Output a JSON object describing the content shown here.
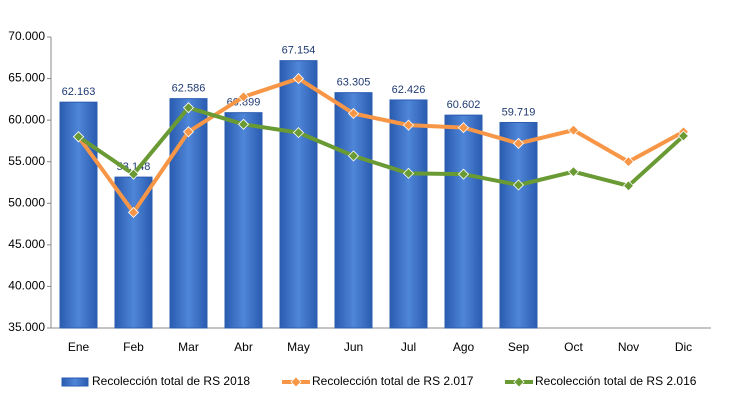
{
  "chart_data": {
    "type": "combo",
    "categories": [
      "Ene",
      "Feb",
      "Mar",
      "Abr",
      "May",
      "Jun",
      "Jul",
      "Ago",
      "Sep",
      "Oct",
      "Nov",
      "Dic"
    ],
    "series": [
      {
        "name": "Recolección total de RS 2018",
        "type": "bar",
        "color": "#3a6fc4",
        "values": [
          62163,
          53148,
          62586,
          60899,
          67154,
          63305,
          62426,
          60602,
          59719,
          null,
          null,
          null
        ],
        "value_labels": [
          "62.163",
          "53.148",
          "62.586",
          "60.899",
          "67.154",
          "63.305",
          "62.426",
          "60.602",
          "59.719",
          null,
          null,
          null
        ]
      },
      {
        "name": "Recolección total de RS 2.017",
        "type": "line",
        "color": "#f79646",
        "values": [
          58000,
          48900,
          58600,
          62800,
          65000,
          60800,
          59400,
          59100,
          57200,
          58800,
          55000,
          58600
        ]
      },
      {
        "name": "Recolección total de RS 2.016",
        "type": "line",
        "color": "#6a9a34",
        "values": [
          58000,
          53500,
          61500,
          59500,
          58500,
          55700,
          53600,
          53500,
          52200,
          53800,
          52100,
          58100
        ]
      }
    ],
    "ylim": [
      35000,
      70000
    ],
    "yticks": [
      {
        "value": 35000,
        "label": "35.000"
      },
      {
        "value": 40000,
        "label": "40.000"
      },
      {
        "value": 45000,
        "label": "45.000"
      },
      {
        "value": 50000,
        "label": "50.000"
      },
      {
        "value": 55000,
        "label": "55.000"
      },
      {
        "value": 60000,
        "label": "60.000"
      },
      {
        "value": 65000,
        "label": "65.000"
      },
      {
        "value": 70000,
        "label": "70.000"
      }
    ],
    "legend": "bottom"
  }
}
